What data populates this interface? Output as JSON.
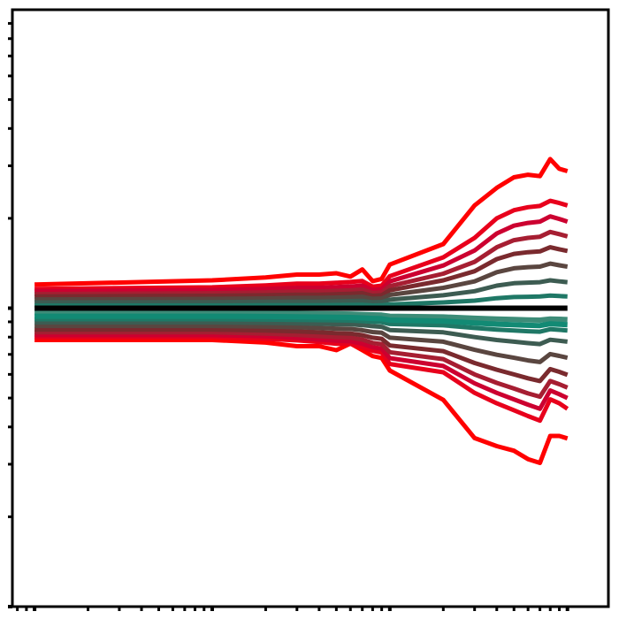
{
  "chart_data": {
    "type": "line",
    "title": "",
    "xlabel": "",
    "ylabel": "",
    "x_scale": "log",
    "y_scale": "log",
    "grid": false,
    "legend": "none",
    "x": [
      1,
      10,
      20,
      30,
      40,
      50,
      60,
      70,
      80,
      90,
      100,
      200,
      300,
      400,
      500,
      600,
      700,
      800,
      900,
      1000
    ],
    "band_pairs": [
      {
        "color": "#ff0000",
        "upper": [
          1.2,
          1.24,
          1.267,
          1.296,
          1.296,
          1.309,
          1.276,
          1.348,
          1.232,
          1.253,
          1.4,
          1.64,
          2.21,
          2.53,
          2.744,
          2.8,
          2.769,
          3.16,
          2.93,
          2.88
        ],
        "lower": [
          0.782,
          0.782,
          0.767,
          0.746,
          0.746,
          0.723,
          0.761,
          0.723,
          0.691,
          0.681,
          0.618,
          0.493,
          0.367,
          0.345,
          0.333,
          0.312,
          0.303,
          0.373,
          0.373,
          0.366
        ]
      },
      {
        "color": "#e8001c",
        "upper": [
          1.16,
          1.175,
          1.192,
          1.208,
          1.208,
          1.216,
          1.224,
          1.233,
          1.18,
          1.19,
          1.28,
          1.48,
          1.72,
          2.0,
          2.13,
          2.18,
          2.2,
          2.29,
          2.25,
          2.21
        ],
        "lower": [
          0.8,
          0.8,
          0.79,
          0.78,
          0.77,
          0.76,
          0.76,
          0.74,
          0.72,
          0.71,
          0.65,
          0.61,
          0.52,
          0.48,
          0.455,
          0.435,
          0.42,
          0.495,
          0.48,
          0.46
        ]
      },
      {
        "color": "#cc0030",
        "upper": [
          1.14,
          1.15,
          1.16,
          1.17,
          1.17,
          1.176,
          1.182,
          1.19,
          1.15,
          1.158,
          1.23,
          1.39,
          1.56,
          1.78,
          1.89,
          1.93,
          1.95,
          2.03,
          1.99,
          1.95
        ],
        "lower": [
          0.812,
          0.812,
          0.805,
          0.795,
          0.785,
          0.778,
          0.775,
          0.76,
          0.74,
          0.732,
          0.68,
          0.64,
          0.56,
          0.52,
          0.495,
          0.475,
          0.46,
          0.53,
          0.515,
          0.5
        ]
      },
      {
        "color": "#a61e32",
        "upper": [
          1.115,
          1.122,
          1.13,
          1.138,
          1.138,
          1.143,
          1.148,
          1.155,
          1.125,
          1.13,
          1.185,
          1.305,
          1.43,
          1.6,
          1.69,
          1.72,
          1.735,
          1.8,
          1.77,
          1.74
        ],
        "lower": [
          0.83,
          0.83,
          0.822,
          0.814,
          0.806,
          0.8,
          0.797,
          0.785,
          0.765,
          0.758,
          0.712,
          0.675,
          0.6,
          0.562,
          0.538,
          0.518,
          0.505,
          0.57,
          0.556,
          0.542
        ]
      },
      {
        "color": "#7a2a2e",
        "upper": [
          1.095,
          1.1,
          1.105,
          1.11,
          1.11,
          1.114,
          1.118,
          1.123,
          1.1,
          1.105,
          1.148,
          1.24,
          1.33,
          1.46,
          1.52,
          1.54,
          1.55,
          1.6,
          1.575,
          1.555
        ],
        "lower": [
          0.848,
          0.848,
          0.842,
          0.836,
          0.83,
          0.825,
          0.822,
          0.812,
          0.796,
          0.79,
          0.75,
          0.718,
          0.655,
          0.622,
          0.6,
          0.582,
          0.57,
          0.625,
          0.612,
          0.598
        ]
      },
      {
        "color": "#5a4640",
        "upper": [
          1.07,
          1.074,
          1.078,
          1.082,
          1.082,
          1.085,
          1.088,
          1.092,
          1.075,
          1.078,
          1.108,
          1.17,
          1.23,
          1.32,
          1.36,
          1.372,
          1.378,
          1.41,
          1.392,
          1.378
        ],
        "lower": [
          0.872,
          0.872,
          0.868,
          0.863,
          0.858,
          0.854,
          0.852,
          0.844,
          0.832,
          0.827,
          0.796,
          0.772,
          0.725,
          0.698,
          0.682,
          0.668,
          0.66,
          0.702,
          0.692,
          0.682
        ]
      },
      {
        "color": "#3d5c52",
        "upper": [
          1.045,
          1.047,
          1.05,
          1.052,
          1.052,
          1.054,
          1.056,
          1.058,
          1.047,
          1.049,
          1.068,
          1.105,
          1.14,
          1.19,
          1.212,
          1.218,
          1.222,
          1.24,
          1.23,
          1.222
        ],
        "lower": [
          0.896,
          0.896,
          0.893,
          0.89,
          0.887,
          0.884,
          0.883,
          0.877,
          0.87,
          0.866,
          0.845,
          0.83,
          0.8,
          0.782,
          0.772,
          0.764,
          0.758,
          0.784,
          0.778,
          0.772
        ]
      },
      {
        "color": "#1f7866",
        "upper": [
          1.02,
          1.021,
          1.022,
          1.023,
          1.023,
          1.024,
          1.025,
          1.026,
          1.021,
          1.022,
          1.03,
          1.045,
          1.06,
          1.08,
          1.09,
          1.092,
          1.094,
          1.102,
          1.098,
          1.094
        ],
        "lower": [
          0.918,
          0.918,
          0.916,
          0.914,
          0.912,
          0.91,
          0.909,
          0.905,
          0.9,
          0.898,
          0.885,
          0.876,
          0.858,
          0.848,
          0.842,
          0.837,
          0.834,
          0.85,
          0.846,
          0.842
        ]
      }
    ],
    "center_lines": [
      {
        "color": "#3d8c78",
        "values": [
          0.965,
          0.965,
          0.962,
          0.96,
          0.958,
          0.957,
          0.956,
          0.953,
          0.95,
          0.948,
          0.94,
          0.935,
          0.925,
          0.92,
          0.917,
          0.914,
          0.912,
          0.92,
          0.918,
          0.916
        ]
      },
      {
        "color": "#128a74",
        "values": [
          0.94,
          0.94,
          0.938,
          0.936,
          0.934,
          0.932,
          0.931,
          0.928,
          0.924,
          0.922,
          0.912,
          0.905,
          0.892,
          0.884,
          0.88,
          0.876,
          0.874,
          0.886,
          0.883,
          0.88
        ]
      }
    ],
    "reference_line": {
      "color": "#000000",
      "value": 1.0
    },
    "xlim": [
      0.75,
      1700
    ],
    "ylim": [
      0.1,
      10
    ]
  }
}
